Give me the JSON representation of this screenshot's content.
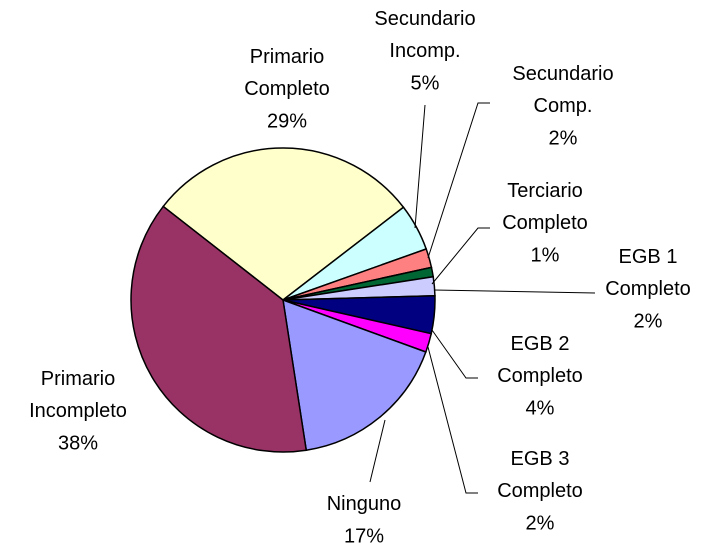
{
  "chart_data": {
    "type": "pie",
    "categories": [
      "Primario Completo",
      "Secundario Incomp.",
      "Secundario Comp.",
      "Terciario Completo",
      "EGB 1 Completo",
      "EGB 2 Completo",
      "EGB 3 Completo",
      "Ninguno",
      "Primario Incompleto"
    ],
    "values": [
      29,
      5,
      2,
      1,
      2,
      4,
      2,
      17,
      38
    ],
    "value_labels": [
      "29%",
      "5%",
      "2%",
      "1%",
      "2%",
      "4%",
      "2%",
      "17%",
      "38%"
    ],
    "colors": [
      "#ffffcc",
      "#ccffff",
      "#ff8080",
      "#006633",
      "#ccccff",
      "#000080",
      "#ff00ff",
      "#9999ff",
      "#993366"
    ]
  }
}
